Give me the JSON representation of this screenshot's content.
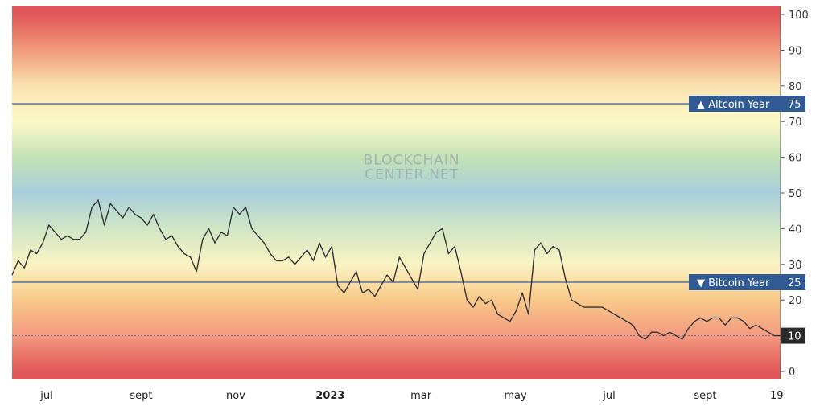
{
  "watermark": {
    "line1": "BLOCKCHAIN",
    "line2": "CENTER.NET"
  },
  "chart_data": {
    "type": "line",
    "title": "",
    "xlabel": "",
    "ylabel": "",
    "ylim": [
      0,
      100
    ],
    "y_ticks": [
      0,
      10,
      20,
      30,
      40,
      50,
      60,
      70,
      80,
      90,
      100
    ],
    "x_ticks": [
      {
        "label": "jul",
        "pos": 0.045,
        "bold": false
      },
      {
        "label": "sept",
        "pos": 0.168,
        "bold": false
      },
      {
        "label": "nov",
        "pos": 0.291,
        "bold": false
      },
      {
        "label": "2023",
        "pos": 0.414,
        "bold": true
      },
      {
        "label": "mar",
        "pos": 0.532,
        "bold": false
      },
      {
        "label": "may",
        "pos": 0.655,
        "bold": false
      },
      {
        "label": "jul",
        "pos": 0.777,
        "bold": false
      },
      {
        "label": "sept",
        "pos": 0.902,
        "bold": false
      },
      {
        "label": "19",
        "pos": 0.995,
        "bold": false
      }
    ],
    "background_bands": [
      {
        "value": 100,
        "color": "#e15759"
      },
      {
        "value": 90,
        "color": "#f19a7a"
      },
      {
        "value": 80,
        "color": "#fbe3b0"
      },
      {
        "value": 70,
        "color": "#fdf8c8"
      },
      {
        "value": 60,
        "color": "#c3e2b6"
      },
      {
        "value": 50,
        "color": "#a8cfdc"
      },
      {
        "value": 40,
        "color": "#d0e6c5"
      },
      {
        "value": 30,
        "color": "#fbf3c3"
      },
      {
        "value": 20,
        "color": "#f9c98a"
      },
      {
        "value": 10,
        "color": "#f49a80"
      },
      {
        "value": 0,
        "color": "#e15759"
      }
    ],
    "reference_lines": [
      {
        "label": "▲ Altcoin Year",
        "value": 75,
        "value_label": "75",
        "color": "#3a5f9a"
      },
      {
        "label": "▼ Bitcoin Year",
        "value": 25,
        "value_label": "25",
        "color": "#3a5f9a"
      }
    ],
    "current_value": {
      "value": 10,
      "label": "10"
    },
    "series": [
      {
        "color": "#333333",
        "x": [
          0,
          0.008,
          0.016,
          0.024,
          0.032,
          0.04,
          0.048,
          0.056,
          0.064,
          0.072,
          0.08,
          0.088,
          0.096,
          0.104,
          0.112,
          0.12,
          0.128,
          0.136,
          0.144,
          0.152,
          0.16,
          0.168,
          0.176,
          0.184,
          0.192,
          0.2,
          0.208,
          0.216,
          0.224,
          0.232,
          0.24,
          0.248,
          0.256,
          0.264,
          0.272,
          0.28,
          0.288,
          0.296,
          0.304,
          0.312,
          0.32,
          0.328,
          0.336,
          0.344,
          0.352,
          0.36,
          0.368,
          0.376,
          0.384,
          0.392,
          0.4,
          0.408,
          0.416,
          0.424,
          0.432,
          0.44,
          0.448,
          0.456,
          0.464,
          0.472,
          0.48,
          0.488,
          0.496,
          0.504,
          0.512,
          0.52,
          0.528,
          0.536,
          0.544,
          0.552,
          0.56,
          0.568,
          0.576,
          0.584,
          0.592,
          0.6,
          0.608,
          0.616,
          0.624,
          0.632,
          0.64,
          0.648,
          0.656,
          0.664,
          0.672,
          0.68,
          0.688,
          0.696,
          0.704,
          0.712,
          0.72,
          0.728,
          0.736,
          0.744,
          0.752,
          0.76,
          0.768,
          0.776,
          0.784,
          0.792,
          0.8,
          0.808,
          0.816,
          0.824,
          0.832,
          0.84,
          0.848,
          0.856,
          0.864,
          0.872,
          0.88,
          0.888,
          0.896,
          0.904,
          0.912,
          0.92,
          0.928,
          0.936,
          0.944,
          0.952,
          0.96,
          0.968,
          0.976,
          0.984,
          0.992,
          1.0
        ],
        "y": [
          27,
          31,
          29,
          34,
          33,
          36,
          41,
          39,
          37,
          38,
          37,
          37,
          39,
          46,
          48,
          41,
          47,
          45,
          43,
          46,
          44,
          43,
          41,
          44,
          40,
          37,
          38,
          35,
          33,
          32,
          28,
          37,
          40,
          36,
          39,
          38,
          46,
          44,
          46,
          40,
          38,
          36,
          33,
          31,
          31,
          32,
          30,
          32,
          34,
          31,
          36,
          32,
          35,
          24,
          22,
          25,
          28,
          22,
          23,
          21,
          24,
          27,
          25,
          32,
          29,
          26,
          23,
          33,
          36,
          39,
          40,
          33,
          35,
          28,
          20,
          18,
          21,
          19,
          20,
          16,
          15,
          14,
          17,
          22,
          16,
          34,
          36,
          33,
          35,
          34,
          26,
          20,
          19,
          18,
          18,
          18,
          18,
          17,
          16,
          15,
          14,
          13,
          10,
          9,
          11,
          11,
          10,
          11,
          10,
          9,
          12,
          14,
          15,
          14,
          15,
          15,
          13,
          15,
          15,
          14,
          12,
          13,
          12,
          11,
          10,
          10
        ]
      }
    ]
  }
}
